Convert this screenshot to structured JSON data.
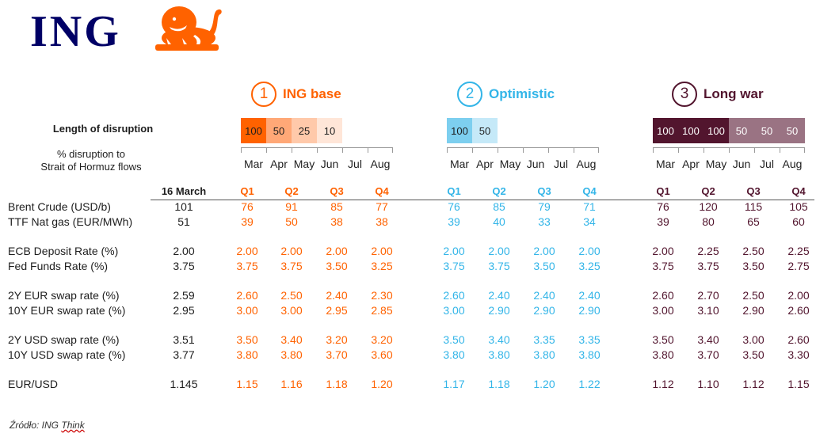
{
  "logo": {
    "text": "ING",
    "mark": "lion-icon"
  },
  "colors": {
    "orange": "#ff6200",
    "blue": "#33b5e8",
    "purple": "#52152e",
    "navy": "#000066"
  },
  "labels": {
    "length": "Length of disruption",
    "pct_line1": "% disruption to",
    "pct_line2": "Strait of Hormuz flows",
    "base_date": "16 March"
  },
  "scenarios": [
    {
      "num": "1",
      "title": "ING base",
      "disruption": [
        {
          "v": "100",
          "bg": "#ff6200"
        },
        {
          "v": "50",
          "bg": "#ffa877"
        },
        {
          "v": "25",
          "bg": "#ffc9aa"
        },
        {
          "v": "10",
          "bg": "#ffe6d8"
        },
        {
          "v": "",
          "bg": "#ffffff"
        },
        {
          "v": "",
          "bg": "#ffffff"
        }
      ],
      "months": [
        "Mar",
        "Apr",
        "May",
        "Jun",
        "Jul",
        "Aug"
      ]
    },
    {
      "num": "2",
      "title": "Optimistic",
      "disruption": [
        {
          "v": "100",
          "bg": "#7dcfef"
        },
        {
          "v": "50",
          "bg": "#c5e9f8"
        },
        {
          "v": "",
          "bg": "#ffffff"
        },
        {
          "v": "",
          "bg": "#ffffff"
        },
        {
          "v": "",
          "bg": "#ffffff"
        },
        {
          "v": "",
          "bg": "#ffffff"
        }
      ],
      "months": [
        "Mar",
        "Apr",
        "May",
        "Jun",
        "Jul",
        "Aug"
      ]
    },
    {
      "num": "3",
      "title": "Long war",
      "disruption": [
        {
          "v": "100",
          "bg": "#52152e"
        },
        {
          "v": "100",
          "bg": "#52152e"
        },
        {
          "v": "100",
          "bg": "#52152e"
        },
        {
          "v": "50",
          "bg": "#9a7383"
        },
        {
          "v": "50",
          "bg": "#9a7383"
        },
        {
          "v": "50",
          "bg": "#9a7383"
        }
      ],
      "months": [
        "Mar",
        "Apr",
        "May",
        "Jun",
        "Jul",
        "Aug"
      ]
    }
  ],
  "quarters": [
    "Q1",
    "Q2",
    "Q3",
    "Q4"
  ],
  "rows": [
    {
      "label": "Brent Crude (USD/b)",
      "base": "101",
      "s": [
        [
          "76",
          "91",
          "85",
          "77"
        ],
        [
          "76",
          "85",
          "79",
          "71"
        ],
        [
          "76",
          "120",
          "115",
          "105"
        ]
      ]
    },
    {
      "label": "TTF Nat gas (EUR/MWh)",
      "base": "51",
      "s": [
        [
          "39",
          "50",
          "38",
          "38"
        ],
        [
          "39",
          "40",
          "33",
          "34"
        ],
        [
          "39",
          "80",
          "65",
          "60"
        ]
      ]
    },
    {
      "gap": true
    },
    {
      "label": "ECB Deposit Rate (%)",
      "base": "2.00",
      "s": [
        [
          "2.00",
          "2.00",
          "2.00",
          "2.00"
        ],
        [
          "2.00",
          "2.00",
          "2.00",
          "2.00"
        ],
        [
          "2.00",
          "2.25",
          "2.50",
          "2.25"
        ]
      ]
    },
    {
      "label": "Fed Funds Rate (%)",
      "base": "3.75",
      "s": [
        [
          "3.75",
          "3.75",
          "3.50",
          "3.25"
        ],
        [
          "3.75",
          "3.75",
          "3.50",
          "3.25"
        ],
        [
          "3.75",
          "3.75",
          "3.50",
          "2.75"
        ]
      ]
    },
    {
      "gap": true
    },
    {
      "label": "2Y EUR swap rate (%)",
      "base": "2.59",
      "s": [
        [
          "2.60",
          "2.50",
          "2.40",
          "2.30"
        ],
        [
          "2.60",
          "2.40",
          "2.40",
          "2.40"
        ],
        [
          "2.60",
          "2.70",
          "2.50",
          "2.00"
        ]
      ]
    },
    {
      "label": "10Y EUR swap rate (%)",
      "base": "2.95",
      "s": [
        [
          "3.00",
          "3.00",
          "2.95",
          "2.85"
        ],
        [
          "3.00",
          "2.90",
          "2.90",
          "2.90"
        ],
        [
          "3.00",
          "3.10",
          "2.90",
          "2.60"
        ]
      ]
    },
    {
      "gap": true
    },
    {
      "label": "2Y USD swap rate (%)",
      "base": "3.51",
      "s": [
        [
          "3.50",
          "3.40",
          "3.20",
          "3.20"
        ],
        [
          "3.50",
          "3.40",
          "3.35",
          "3.35"
        ],
        [
          "3.50",
          "3.40",
          "3.00",
          "2.60"
        ]
      ]
    },
    {
      "label": "10Y USD swap rate (%)",
      "base": "3.77",
      "s": [
        [
          "3.80",
          "3.80",
          "3.70",
          "3.60"
        ],
        [
          "3.80",
          "3.80",
          "3.80",
          "3.80"
        ],
        [
          "3.80",
          "3.70",
          "3.50",
          "3.30"
        ]
      ]
    },
    {
      "gap": true
    },
    {
      "label": "EUR/USD",
      "base": "1.145",
      "s": [
        [
          "1.15",
          "1.16",
          "1.18",
          "1.20"
        ],
        [
          "1.17",
          "1.18",
          "1.20",
          "1.22"
        ],
        [
          "1.12",
          "1.10",
          "1.12",
          "1.15"
        ]
      ]
    }
  ],
  "source": {
    "prefix": "Źródło: ING ",
    "think": "Think"
  }
}
